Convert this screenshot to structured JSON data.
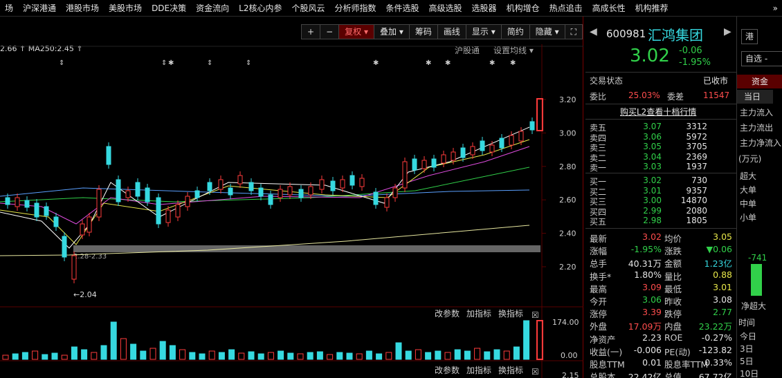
{
  "nav": {
    "items": [
      "场",
      "沪深港通",
      "港股市场",
      "美股市场",
      "DDE决策",
      "资金流向",
      "L2核心内参",
      "个股风云",
      "分析师指数",
      "条件选股",
      "高级选股",
      "选股器",
      "机构增仓",
      "热点追击",
      "高成长性",
      "机构推荐"
    ],
    "more_icon": "double-chevron-right-icon"
  },
  "toolbar": {
    "buttons": [
      "+",
      "−",
      "复权 ▾",
      "叠加 ▾",
      "筹码",
      "画线",
      "显示 ▾",
      "简约",
      "隐藏 ▾",
      "⛶"
    ],
    "active_index": 2,
    "active_color": "#ff6b6b"
  },
  "chart": {
    "ma_text": "2.66  ↑  MA250:2.45  ↑",
    "hugang_label": "沪股通",
    "ma_settings_label": "设置均线 ▾",
    "price_ticks": [
      "3.20",
      "3.00",
      "2.80",
      "2.60",
      "2.40",
      "2.20"
    ],
    "low_annot": "←2.04",
    "band_annot": "2.28-2.33",
    "volume_ticks": [
      "174.00",
      "0.00"
    ],
    "volume_menu": [
      "改参数",
      "加指标",
      "换指标"
    ],
    "bottom_menu": [
      "改参数",
      "加指标",
      "换指标"
    ],
    "bottom_tick": "2.15",
    "colors": {
      "up": "#ff3b3b",
      "down": "#36d9e0",
      "ma5": "#ffffff",
      "ma10": "#e8e84a",
      "ma20": "#e04de0",
      "ma30": "#31d14a",
      "ma60": "#5aa0ff",
      "ma250": "#e8e8a0"
    }
  },
  "stock": {
    "code": "600981",
    "name": "汇鸿集团",
    "hk_badge": "港",
    "price": "3.02",
    "change": "-0.06",
    "change_pct": "-1.95%",
    "watch_button": "自选 -",
    "status_label": "交易状态",
    "status_value": "已收市",
    "webi_label": "委比",
    "webi_value": "25.03%",
    "weicha_label": "委差",
    "weicha_value": "11547",
    "l2_link": "购买L2查看十档行情",
    "asks": [
      {
        "label": "卖五",
        "price": "3.07",
        "vol": "3312"
      },
      {
        "label": "卖四",
        "price": "3.06",
        "vol": "5972"
      },
      {
        "label": "卖三",
        "price": "3.05",
        "vol": "3705"
      },
      {
        "label": "卖二",
        "price": "3.04",
        "vol": "2369"
      },
      {
        "label": "卖一",
        "price": "3.03",
        "vol": "1937"
      }
    ],
    "bids": [
      {
        "label": "买一",
        "price": "3.02",
        "vol": "730"
      },
      {
        "label": "买二",
        "price": "3.01",
        "vol": "9357"
      },
      {
        "label": "买三",
        "price": "3.00",
        "vol": "14870"
      },
      {
        "label": "买四",
        "price": "2.99",
        "vol": "2080"
      },
      {
        "label": "买五",
        "price": "2.98",
        "vol": "1805"
      }
    ],
    "stats": [
      {
        "l": "最新",
        "v": "3.02",
        "vc": "red",
        "l2": "均价",
        "v2": "3.05",
        "v2c": "yellow"
      },
      {
        "l": "涨幅",
        "v": "-1.95%",
        "vc": "green",
        "l2": "涨跌",
        "v2": "▼0.06",
        "v2c": "green"
      },
      {
        "l": "总手",
        "v": "40.31万",
        "vc": "white",
        "l2": "金额",
        "v2": "1.23亿",
        "v2c": "cyan"
      },
      {
        "l": "换手*",
        "v": "1.80%",
        "vc": "white",
        "l2": "量比",
        "v2": "0.88",
        "v2c": "yellow"
      },
      {
        "l": "最高",
        "v": "3.09",
        "vc": "red",
        "l2": "最低",
        "v2": "3.01",
        "v2c": "yellow"
      },
      {
        "l": "今开",
        "v": "3.06",
        "vc": "green",
        "l2": "昨收",
        "v2": "3.08",
        "v2c": "white"
      },
      {
        "l": "涨停",
        "v": "3.39",
        "vc": "red",
        "l2": "跌停",
        "v2": "2.77",
        "v2c": "green"
      },
      {
        "l": "外盘",
        "v": "17.09万",
        "vc": "red",
        "l2": "内盘",
        "v2": "23.22万",
        "v2c": "green"
      },
      {
        "l": "净资产",
        "v": "2.23",
        "vc": "white",
        "l2": "ROE",
        "v2": "-0.27%",
        "v2c": "white"
      },
      {
        "l": "收益(一)",
        "v": "-0.006",
        "vc": "white",
        "l2": "PE(动)",
        "v2": "-123.82",
        "v2c": "white"
      },
      {
        "l": "股息TTM",
        "v": "0.01",
        "vc": "white",
        "l2": "股息率TTM",
        "v2": "0.33%",
        "v2c": "white"
      },
      {
        "l": "总股本",
        "v": "22.42亿",
        "vc": "white",
        "l2": "总值",
        "v2": "67.72亿",
        "v2c": "white"
      }
    ]
  },
  "far": {
    "tab_fund": "资金",
    "tab_today": "当日",
    "flow_labels": [
      "主力流入",
      "主力流出",
      "主力净流入"
    ],
    "unit": "(万元)",
    "size_labels": [
      "超大",
      "大单",
      "中单",
      "小单"
    ],
    "bar_value": "-741",
    "bar_caption": "净超大",
    "time_header": "时间",
    "time_rows": [
      "今日",
      "3日",
      "5日",
      "10日"
    ]
  }
}
